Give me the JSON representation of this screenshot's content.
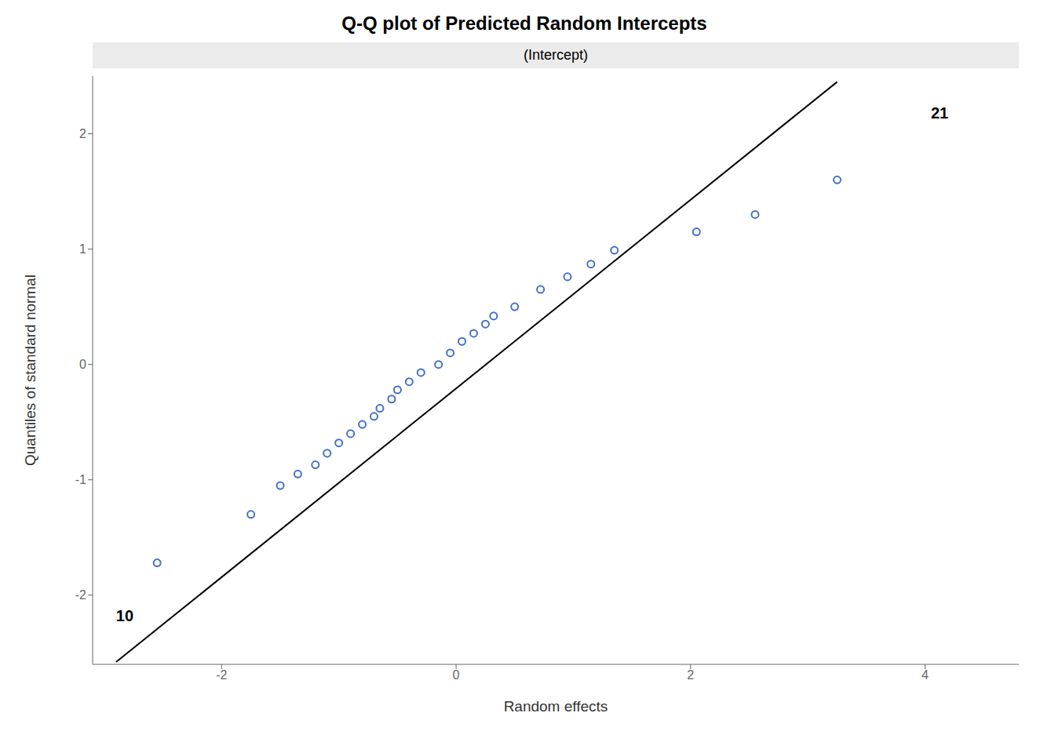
{
  "chart_data": {
    "type": "scatter",
    "title": "Q-Q plot of Predicted Random Intercepts",
    "subtitle": "(Intercept)",
    "xlabel": "Random effects",
    "ylabel": "Quantiles of standard normal",
    "x": [
      -2.55,
      -1.75,
      -1.5,
      -1.35,
      -1.2,
      -1.1,
      -1.0,
      -0.9,
      -0.8,
      -0.7,
      -0.65,
      -0.55,
      -0.5,
      -0.4,
      -0.3,
      -0.15,
      -0.05,
      0.05,
      0.15,
      0.25,
      0.32,
      0.5,
      0.72,
      0.95,
      1.15,
      1.35,
      2.05,
      2.55,
      3.25
    ],
    "values": [
      -1.72,
      -1.3,
      -1.05,
      -0.95,
      -0.87,
      -0.77,
      -0.68,
      -0.6,
      -0.52,
      -0.45,
      -0.38,
      -0.3,
      -0.22,
      -0.15,
      -0.07,
      0.0,
      0.1,
      0.2,
      0.27,
      0.35,
      0.42,
      0.5,
      0.65,
      0.76,
      0.87,
      0.99,
      1.15,
      1.3,
      1.6
    ],
    "color": "#4472C4",
    "marker": "open_circle",
    "xlim": [
      -3.1,
      4.8
    ],
    "ylim": [
      -2.6,
      2.5
    ],
    "xticks": [
      -2,
      0,
      2,
      4
    ],
    "yticks": [
      -2,
      -1,
      0,
      1,
      2
    ],
    "grid": false,
    "reference_line": {
      "x": [
        -2.9,
        3.25
      ],
      "y": [
        -2.58,
        2.45
      ],
      "color": "#000000"
    },
    "annotations": [
      {
        "text": "21",
        "x": 4.05,
        "y": 2.18
      },
      {
        "text": "10",
        "x": -2.9,
        "y": -2.18
      }
    ]
  }
}
